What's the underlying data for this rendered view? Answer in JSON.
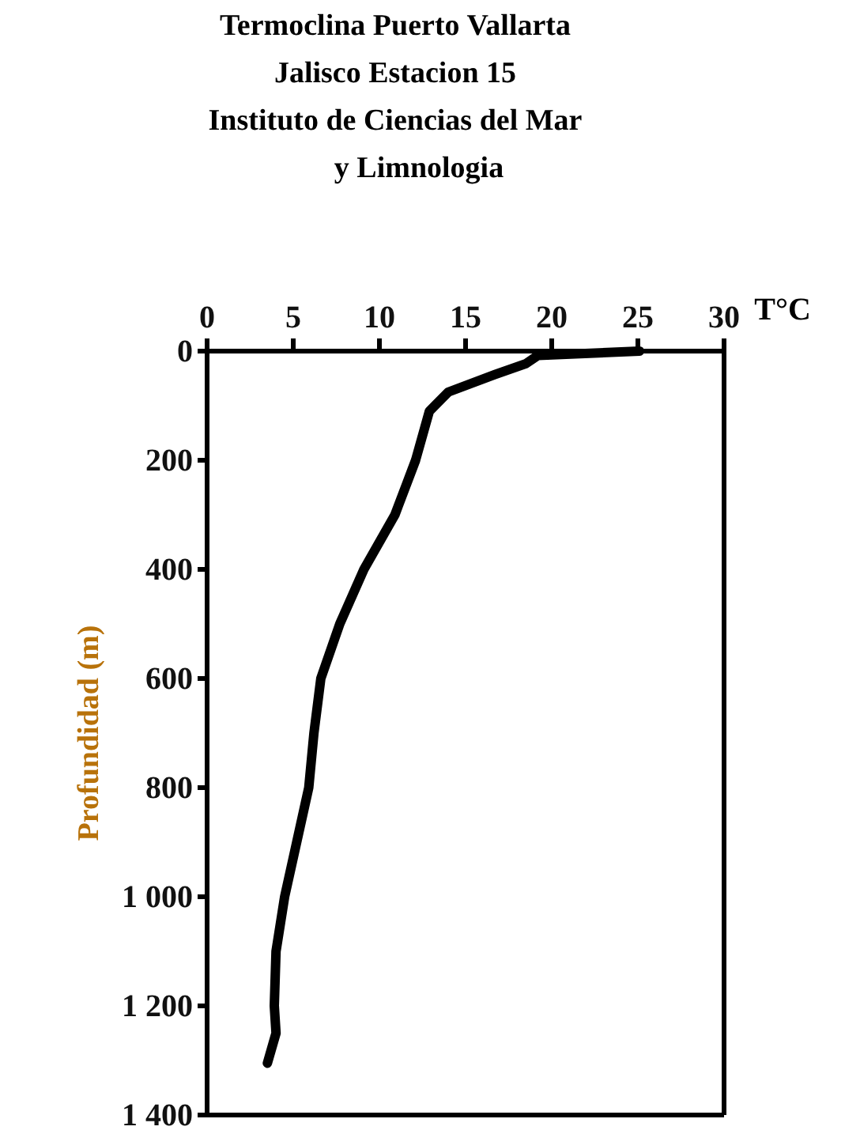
{
  "chart_data": {
    "type": "line",
    "title": "Termoclina Puerto Vallarta\nJalisco Estacion 15\nInstituto de Ciencias del Mar\ny  Limnologia",
    "xlabel": "T°C",
    "ylabel": "Profundidad (m)",
    "x": [
      25.1,
      19.2,
      18.5,
      16.7,
      14,
      12.9,
      12.1,
      10.9,
      9.1,
      7.7,
      6.6,
      6.2,
      5.9,
      5.2,
      4.5,
      4.0,
      3.9,
      4.0,
      3.5
    ],
    "series": [
      {
        "color": "#000000",
        "values": [
          0,
          8,
          23,
          43,
          75,
          110,
          200,
          300,
          400,
          500,
          600,
          700,
          800,
          900,
          1000,
          1100,
          1200,
          1250,
          1305
        ]
      }
    ],
    "xlim": [
      0,
      30
    ],
    "xticks": [
      0,
      5,
      10,
      15,
      20,
      25,
      30
    ],
    "ylim": [
      1400,
      0
    ],
    "yticks": [
      0,
      200,
      400,
      600,
      800,
      {
        "value": 1000,
        "label": "1 000"
      },
      {
        "value": 1200,
        "label": "1 200"
      },
      {
        "value": 1400,
        "label": "1 400"
      }
    ],
    "grid": false,
    "marker": "none",
    "line_style": "solid"
  }
}
